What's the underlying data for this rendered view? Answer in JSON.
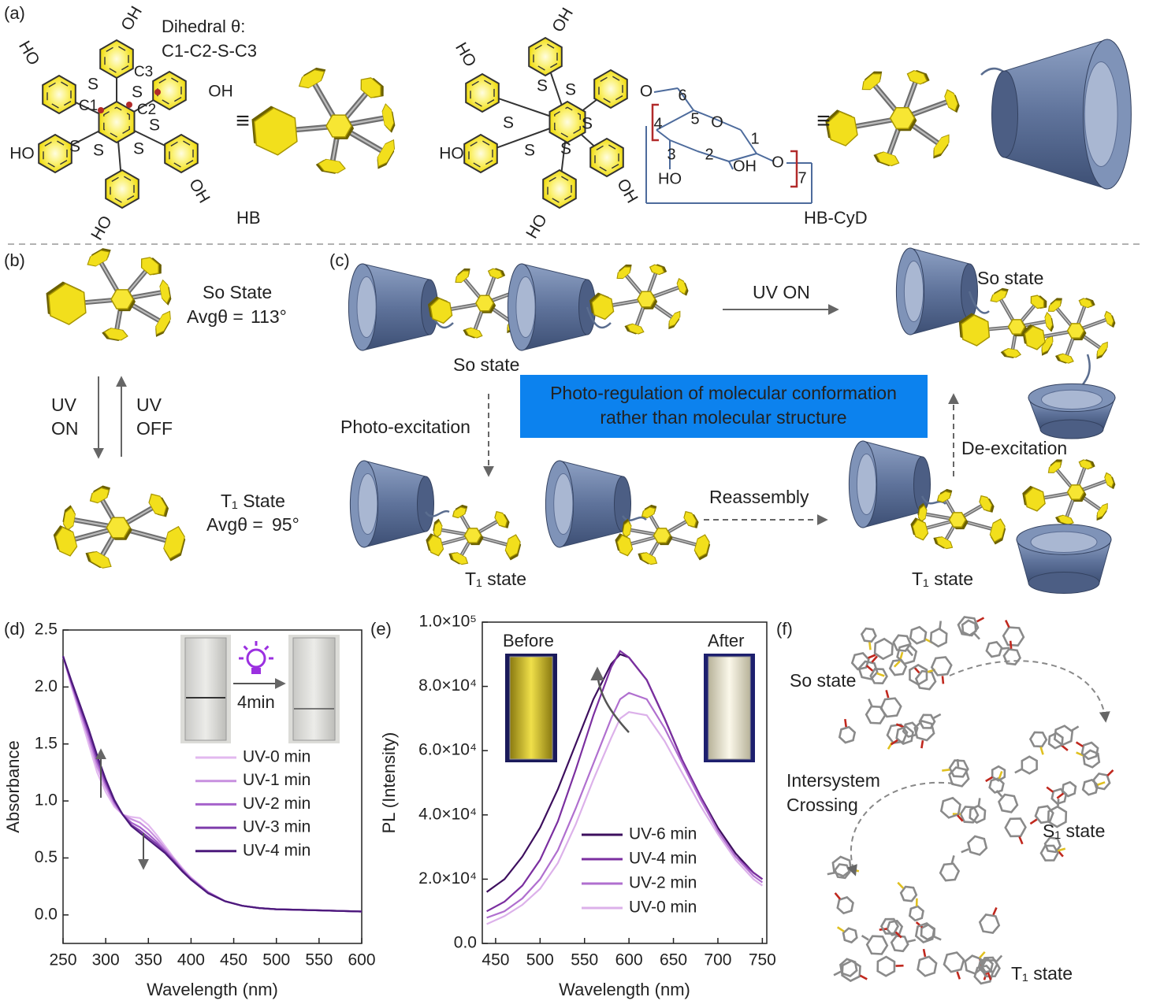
{
  "panel_labels": [
    "(a)",
    "(b)",
    "(c)",
    "(d)",
    "(e)",
    "(f)"
  ],
  "a": {
    "dihedral_title": "Dihedral θ:",
    "dihedral_atoms": "C1-C2-S-C3",
    "atoms": [
      "C1",
      "C2",
      "C3"
    ],
    "equiv": "≡",
    "hb": "HB",
    "hb_cyd": "HB-CyD",
    "hb_groups": [
      "OH",
      "HO",
      "S",
      "S",
      "OH",
      "S",
      "S",
      "HO",
      "S",
      "S",
      "OH",
      "HO"
    ],
    "cyd_groups": [
      "OH",
      "HO",
      "S",
      "S",
      "O",
      "S",
      "S",
      "HO",
      "S",
      "S",
      "OH",
      "HO"
    ],
    "glucose_labels": [
      "6",
      "5",
      "O",
      "4",
      "3",
      "2",
      "1",
      "OH",
      "HO",
      "O"
    ],
    "repeat": "7"
  },
  "b": {
    "s0": "So State",
    "avg": "Avgθ =",
    "s0_angle": "113°",
    "uv": "UV",
    "on": "ON",
    "off": "OFF",
    "t1": "T₁ State",
    "t1_angle": "95°"
  },
  "c": {
    "s0": "So state",
    "uv_on": "UV ON",
    "box": [
      "Photo-regulation of molecular conformation",
      "rather than molecular structure"
    ],
    "photo_excitation": "Photo-excitation",
    "reassembly": "Reassembly",
    "de_excitation": "De-excitation",
    "t1": "T₁ state"
  },
  "d_inset": {
    "time": "4min"
  },
  "e_inset": {
    "before": "Before",
    "after": "After"
  },
  "f": {
    "s0": "So state",
    "isc": [
      "Intersystem",
      "Crossing"
    ],
    "s1": "S₁ state",
    "t1": "T₁ state"
  },
  "chart_data": [
    {
      "type": "line",
      "xlabel": "Wavelength (nm)",
      "ylabel": "Absorbance",
      "xlim": [
        250,
        600
      ],
      "ylim": [
        -0.25,
        2.5
      ],
      "xticks": [
        250,
        300,
        350,
        400,
        450,
        500,
        550,
        600
      ],
      "yticks": [
        {
          "value": 0,
          "label": "0.0"
        },
        0.5,
        {
          "value": 1,
          "label": "1.0"
        },
        1.5,
        {
          "value": 2,
          "label": "2.0"
        },
        2.5
      ],
      "x": [
        250,
        260,
        270,
        280,
        290,
        300,
        310,
        320,
        330,
        340,
        350,
        360,
        370,
        380,
        390,
        400,
        420,
        440,
        460,
        480,
        500,
        550,
        600
      ],
      "series": [
        {
          "name": "UV-0 min",
          "color": "#e2b8ef",
          "values": [
            2.27,
            2.0,
            1.75,
            1.5,
            1.25,
            1.08,
            0.95,
            0.88,
            0.86,
            0.85,
            0.79,
            0.7,
            0.6,
            0.5,
            0.41,
            0.33,
            0.2,
            0.12,
            0.08,
            0.06,
            0.05,
            0.04,
            0.03
          ]
        },
        {
          "name": "UV-1 min",
          "color": "#c890df",
          "values": [
            2.27,
            2.02,
            1.78,
            1.55,
            1.3,
            1.12,
            0.97,
            0.88,
            0.84,
            0.81,
            0.75,
            0.67,
            0.58,
            0.49,
            0.4,
            0.32,
            0.2,
            0.12,
            0.08,
            0.06,
            0.05,
            0.04,
            0.03
          ]
        },
        {
          "name": "UV-2 min",
          "color": "#a662cb",
          "values": [
            2.27,
            2.03,
            1.8,
            1.58,
            1.34,
            1.15,
            0.99,
            0.88,
            0.81,
            0.77,
            0.71,
            0.64,
            0.56,
            0.48,
            0.39,
            0.32,
            0.2,
            0.12,
            0.08,
            0.06,
            0.05,
            0.04,
            0.03
          ]
        },
        {
          "name": "UV-3 min",
          "color": "#7e3cab",
          "values": [
            2.27,
            2.04,
            1.82,
            1.61,
            1.37,
            1.17,
            1.0,
            0.88,
            0.79,
            0.74,
            0.68,
            0.62,
            0.55,
            0.47,
            0.39,
            0.31,
            0.19,
            0.12,
            0.08,
            0.06,
            0.05,
            0.04,
            0.03
          ]
        },
        {
          "name": "UV-4 min",
          "color": "#4c1a7b",
          "values": [
            2.27,
            2.05,
            1.84,
            1.63,
            1.4,
            1.19,
            1.01,
            0.88,
            0.78,
            0.72,
            0.66,
            0.6,
            0.54,
            0.46,
            0.38,
            0.31,
            0.19,
            0.12,
            0.08,
            0.06,
            0.05,
            0.04,
            0.03
          ]
        }
      ]
    },
    {
      "type": "line",
      "xlabel": "Wavelength (nm)",
      "ylabel": "PL (Intensity)",
      "xlim": [
        435,
        755
      ],
      "ylim": [
        0,
        100000
      ],
      "xticks": [
        450,
        500,
        550,
        600,
        650,
        700,
        750
      ],
      "yticks": [
        {
          "value": 0,
          "label": "0.0"
        },
        {
          "value": 20000,
          "label": "2.0×10⁴"
        },
        {
          "value": 40000,
          "label": "4.0×10⁴"
        },
        {
          "value": 60000,
          "label": "6.0×10⁴"
        },
        {
          "value": 80000,
          "label": "8.0×10⁴"
        },
        {
          "value": 100000,
          "label": "1.0×10⁵"
        }
      ],
      "x": [
        440,
        460,
        480,
        500,
        520,
        540,
        560,
        580,
        590,
        600,
        620,
        640,
        660,
        680,
        700,
        720,
        740,
        750
      ],
      "series": [
        {
          "name": "UV-6 min",
          "color": "#3d0f5e",
          "values": [
            16000,
            20000,
            27000,
            36000,
            48000,
            62000,
            76000,
            87000,
            90000,
            89000,
            82000,
            70000,
            57000,
            46000,
            36000,
            28000,
            22000,
            20000
          ]
        },
        {
          "name": "UV-4 min",
          "color": "#7b2fa0",
          "values": [
            10000,
            13000,
            18000,
            26000,
            38000,
            54000,
            71000,
            86000,
            91000,
            89000,
            82000,
            70000,
            57000,
            46000,
            35000,
            27000,
            22000,
            20000
          ]
        },
        {
          "name": "UV-2 min",
          "color": "#b06fcf",
          "values": [
            8000,
            10000,
            14000,
            20000,
            29000,
            42000,
            56000,
            70000,
            76000,
            78000,
            76000,
            67000,
            56000,
            45000,
            35000,
            27000,
            21000,
            19000
          ]
        },
        {
          "name": "UV-0 min",
          "color": "#dcb1ea",
          "values": [
            6000,
            8500,
            12000,
            17000,
            25000,
            37000,
            51000,
            64000,
            70000,
            72000,
            71000,
            63000,
            53000,
            43000,
            34000,
            26000,
            20000,
            18000
          ]
        }
      ]
    }
  ]
}
